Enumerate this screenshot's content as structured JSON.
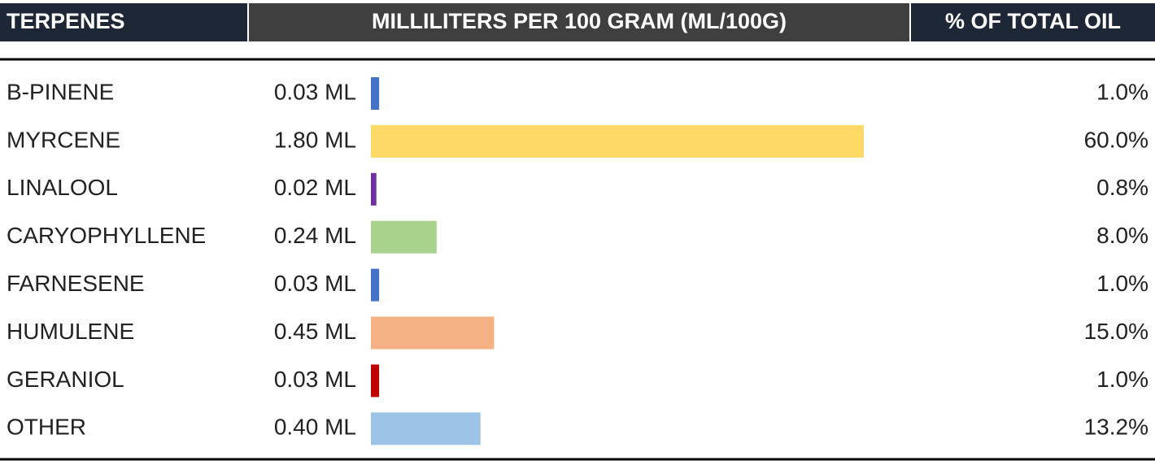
{
  "chart_data": {
    "type": "bar",
    "headers": [
      "TERPENES",
      "MILLILITERS PER 100 GRAM (ML/100G)",
      "% OF TOTAL OIL"
    ],
    "categories": [
      "B-PINENE",
      "MYRCENE",
      "LINALOOL",
      "CARYOPHYLLENE",
      "FARNESENE",
      "HUMULENE",
      "GERANIOL",
      "OTHER"
    ],
    "values": [
      0.03,
      1.8,
      0.02,
      0.24,
      0.03,
      0.45,
      0.03,
      0.4
    ],
    "value_labels": [
      "0.03 ML",
      "1.80 ML",
      "0.02 ML",
      "0.24 ML",
      "0.03 ML",
      "0.45 ML",
      "0.03 ML",
      "0.40 ML"
    ],
    "colors": [
      "#4472c4",
      "#ffd966",
      "#7030a0",
      "#a9d18e",
      "#4472c4",
      "#f4b183",
      "#c00000",
      "#9dc3e6"
    ],
    "share_labels": [
      "1.0%",
      "60.0%",
      "0.8%",
      "8.0%",
      "1.0%",
      "15.0%",
      "1.0%",
      "13.2%"
    ]
  }
}
